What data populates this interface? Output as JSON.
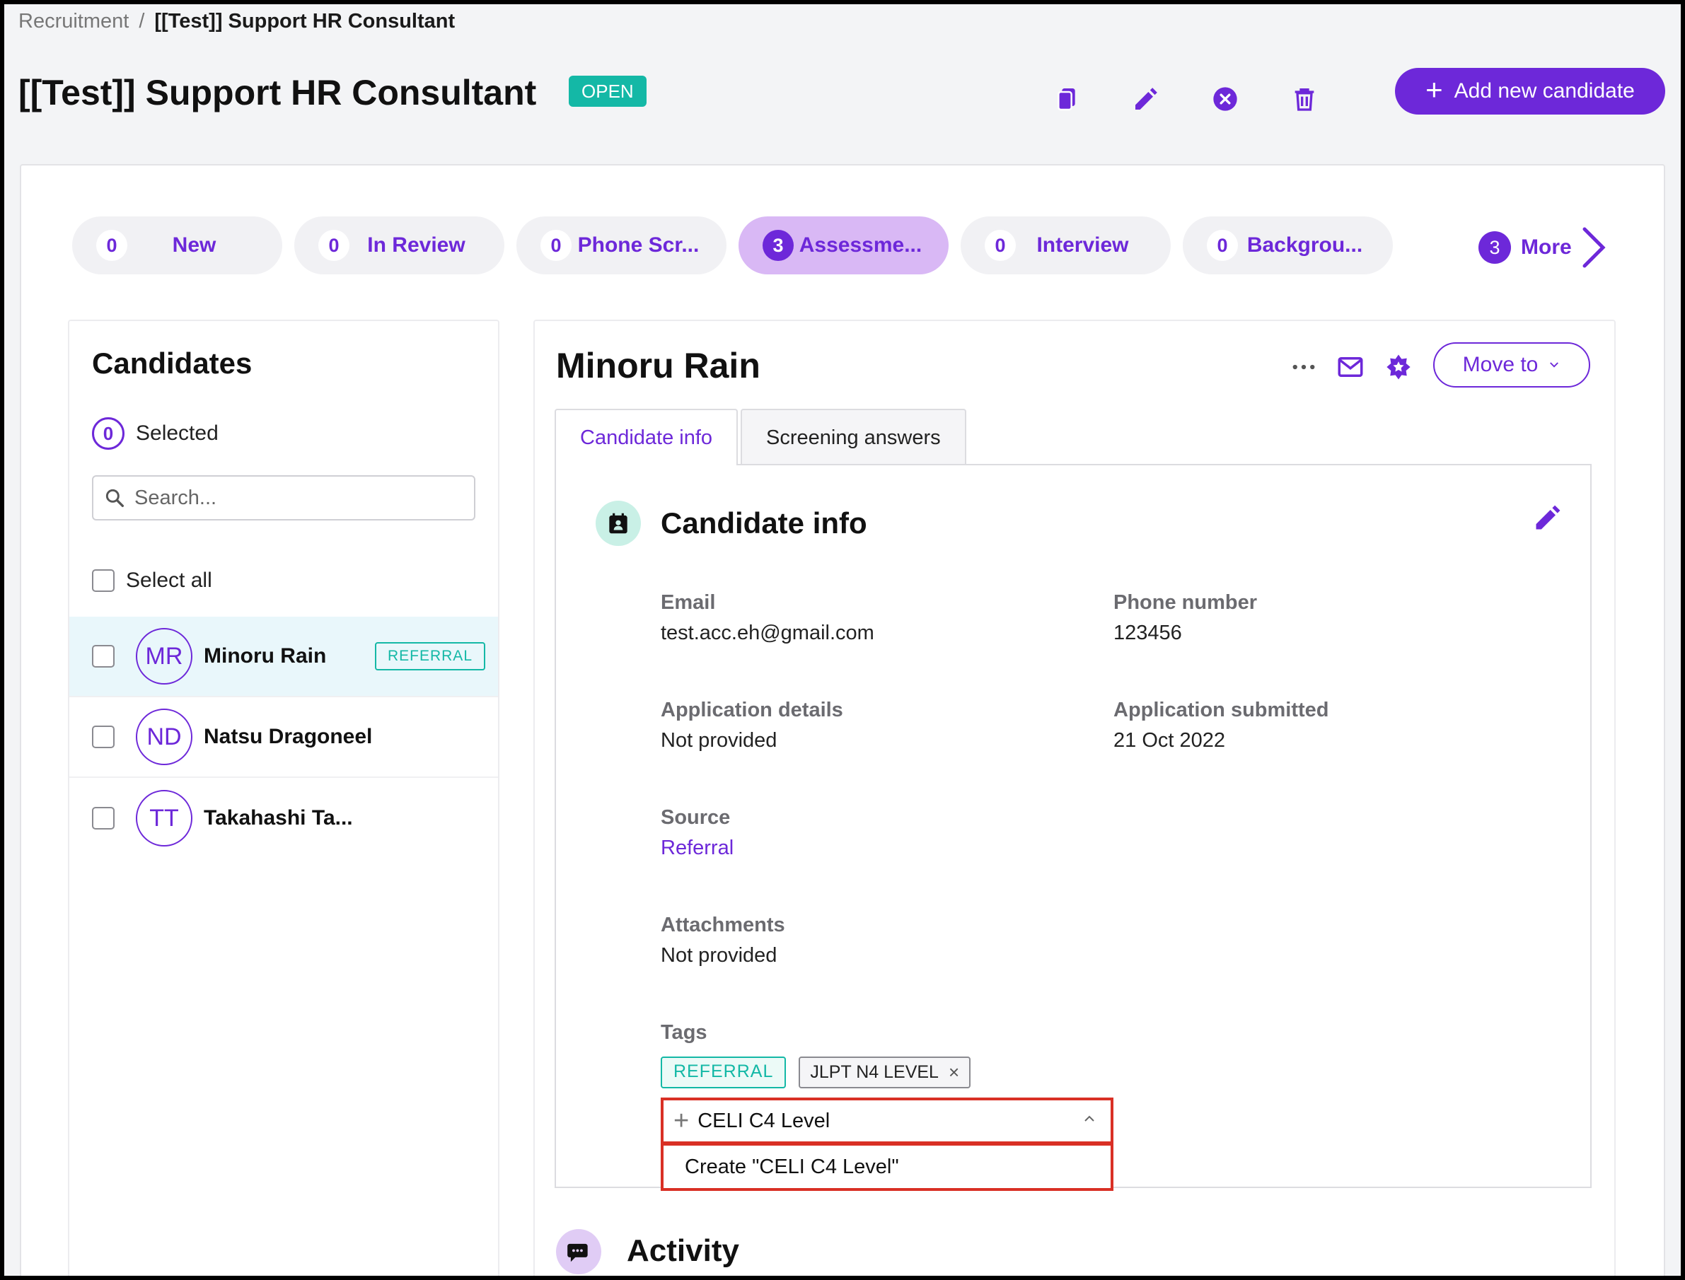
{
  "breadcrumb": {
    "root": "Recruitment",
    "separator": "/",
    "current": "[[Test]] Support HR Consultant"
  },
  "header": {
    "title": "[[Test]] Support HR Consultant",
    "status": "OPEN",
    "add_button": "Add new candidate"
  },
  "stages": [
    {
      "count": "0",
      "label": "New"
    },
    {
      "count": "0",
      "label": "In Review"
    },
    {
      "count": "0",
      "label": "Phone Scr..."
    },
    {
      "count": "3",
      "label": "Assessme..."
    },
    {
      "count": "0",
      "label": "Interview"
    },
    {
      "count": "0",
      "label": "Backgrou..."
    }
  ],
  "more": {
    "count": "3",
    "label": "More"
  },
  "candidates": {
    "title": "Candidates",
    "selected_count": "0",
    "selected_label": "Selected",
    "search_placeholder": "Search...",
    "select_all": "Select all",
    "items": [
      {
        "initials": "MR",
        "name": "Minoru Rain",
        "badge": "REFERRAL"
      },
      {
        "initials": "ND",
        "name": "Natsu Dragoneel"
      },
      {
        "initials": "TT",
        "name": "Takahashi Ta..."
      }
    ]
  },
  "detail": {
    "name": "Minoru Rain",
    "move_button": "Move to",
    "tabs": [
      "Candidate info",
      "Screening answers"
    ],
    "section_title": "Candidate info",
    "fields": {
      "email_label": "Email",
      "email_value": "test.acc.eh@gmail.com",
      "phone_label": "Phone number",
      "phone_value": "123456",
      "app_details_label": "Application details",
      "app_details_value": "Not provided",
      "app_submitted_label": "Application submitted",
      "app_submitted_value": "21 Oct 2022",
      "source_label": "Source",
      "source_value": "Referral",
      "attachments_label": "Attachments",
      "attachments_value": "Not provided",
      "tags_label": "Tags"
    },
    "tags": [
      "REFERRAL",
      "JLPT N4 LEVEL"
    ],
    "tag_input_value": "CELI C4 Level",
    "tag_create_option": "Create \"CELI C4 Level\"",
    "activity_title": "Activity"
  },
  "colors": {
    "accent": "#6d28d9",
    "status": "#14b8a6",
    "highlight": "#d93025"
  }
}
